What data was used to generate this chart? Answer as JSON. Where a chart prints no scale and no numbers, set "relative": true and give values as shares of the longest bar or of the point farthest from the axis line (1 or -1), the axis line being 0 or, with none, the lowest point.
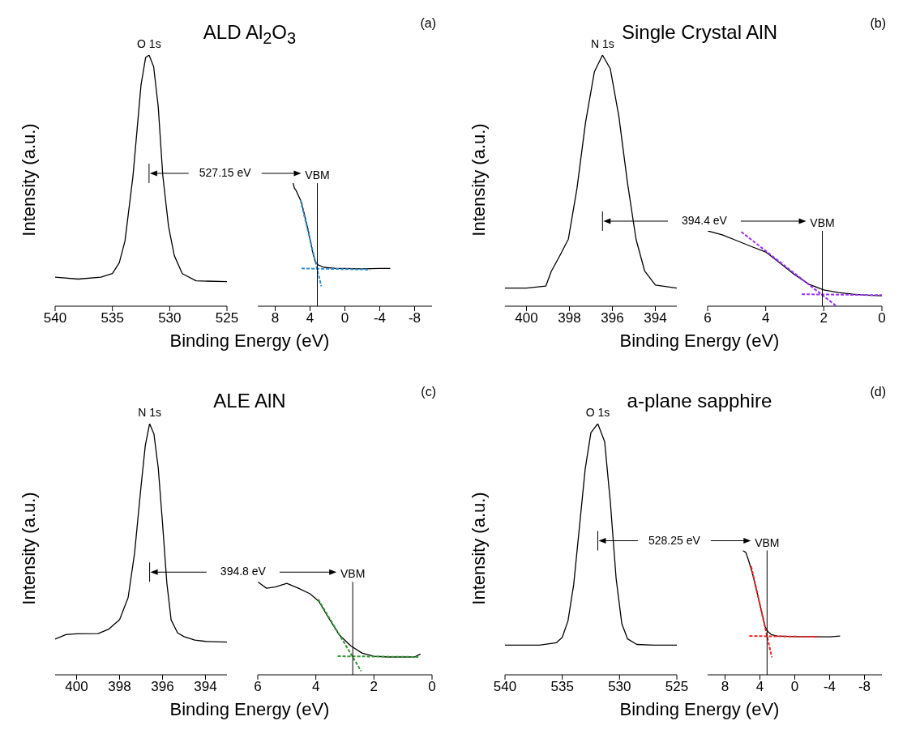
{
  "chart_data": [
    {
      "type": "line",
      "title": "ALD Al$_{2}$O$_{3}$",
      "xlabel": "Binding Energy (eV)",
      "ylabel": "Intensity (a.u.)",
      "relative": true,
      "xlim": [
        540,
        525
      ],
      "xticks": [
        540,
        535,
        530,
        525
      ],
      "annotations": [
        {
          "text": "O 1s",
          "x": 531.8,
          "y": 1
        },
        "527.15 eV"
      ],
      "series": [
        {
          "color": "#000000",
          "x": [
            540,
            538,
            536,
            535,
            534.4,
            533.9,
            533.2,
            532.5,
            532.1,
            531.8,
            531.4,
            531,
            530.6,
            530.1,
            529.6,
            528.9,
            527.7,
            525
          ],
          "values": [
            0.116,
            0.108,
            0.116,
            0.13,
            0.173,
            0.26,
            0.52,
            0.882,
            0.99,
            1,
            0.954,
            0.795,
            0.52,
            0.318,
            0.202,
            0.13,
            0.101,
            0.098
          ]
        }
      ]
    },
    {
      "type": "line",
      "relative": true,
      "xlim": [
        10,
        -10
      ],
      "xticks": [
        8,
        4,
        0,
        -4,
        -8
      ],
      "annotations": [
        "(a)"
      ],
      "ref_lines": [
        {
          "axis": "x",
          "value": 3.16,
          "label": "VBM"
        }
      ],
      "series": [
        {
          "color": "#000000",
          "x": [
            5.94,
            5.8,
            5.6,
            5,
            4.2,
            3.7,
            3.4,
            3.1,
            2.4,
            1,
            0,
            -2,
            -4,
            -5.2
          ],
          "values": [
            1,
            0.96,
            0.94,
            0.848,
            0.614,
            0.439,
            0.363,
            0.336,
            0.316,
            0.307,
            0.307,
            0.304,
            0.307,
            0.307
          ]
        },
        {
          "color": "#2b8fd4",
          "line_style": "dashed",
          "x": [
            5.1,
            2.7
          ],
          "values": [
            0.863,
            0.161
          ]
        },
        {
          "color": "#2b8fd4",
          "line_style": "dashed",
          "x": [
            4.97,
            -2.9
          ],
          "values": [
            0.307,
            0.298
          ]
        }
      ]
    },
    {
      "type": "line",
      "title": "Single Crystal AlN",
      "xlabel": "Binding Energy (eV)",
      "ylabel": "Intensity (a.u.)",
      "relative": true,
      "xlim": [
        401,
        393
      ],
      "xticks": [
        400,
        398,
        396,
        394
      ],
      "annotations": [
        {
          "text": "N 1s",
          "x": 396.46,
          "y": 1
        },
        "394.4 eV"
      ],
      "series": [
        {
          "color": "#000000",
          "x": [
            401,
            400,
            399.1,
            398.85,
            398.45,
            398.05,
            397.65,
            397.25,
            396.84,
            396.46,
            396.1,
            395.7,
            395.3,
            394.9,
            394.5,
            394,
            393
          ],
          "values": [
            0.072,
            0.072,
            0.08,
            0.138,
            0.201,
            0.267,
            0.468,
            0.732,
            0.933,
            1,
            0.946,
            0.757,
            0.493,
            0.267,
            0.141,
            0.084,
            0.072
          ]
        }
      ]
    },
    {
      "type": "line",
      "relative": true,
      "xlim": [
        6,
        0
      ],
      "xticks": [
        6,
        4,
        2,
        0
      ],
      "annotations": [
        "(b)"
      ],
      "ref_lines": [
        {
          "axis": "x",
          "value": 2.05,
          "label": "VBM"
        }
      ],
      "series": [
        {
          "color": "#000000",
          "x": [
            6,
            5.5,
            5,
            4.5,
            4,
            3.5,
            3,
            2.5,
            2,
            1.5,
            1,
            0.5,
            0
          ],
          "values": [
            1,
            0.948,
            0.871,
            0.793,
            0.72,
            0.569,
            0.418,
            0.289,
            0.216,
            0.181,
            0.159,
            0.147,
            0.138
          ]
        },
        {
          "color": "#9b30ff",
          "line_style": "dashed",
          "x": [
            4.84,
            1.59
          ],
          "values": [
            0.987,
            0.009
          ]
        },
        {
          "color": "#9b30ff",
          "line_style": "dashed",
          "x": [
            2.76,
            0
          ],
          "values": [
            0.159,
            0.147
          ]
        }
      ]
    },
    {
      "type": "line",
      "title": "ALE AlN",
      "xlabel": "Binding Energy (eV)",
      "ylabel": "Intensity (a.u.)",
      "relative": true,
      "xlim": [
        401,
        393
      ],
      "xticks": [
        400,
        398,
        396,
        394
      ],
      "annotations": [
        {
          "text": "N 1s",
          "x": 396.6,
          "y": 1
        },
        "394.8 eV"
      ],
      "series": [
        {
          "color": "#000000",
          "x": [
            401,
            400.5,
            400,
            399,
            398.5,
            398,
            397.6,
            397.3,
            397,
            396.8,
            396.6,
            396.4,
            396.2,
            396,
            395.8,
            395.6,
            395.3,
            395,
            394.5,
            394,
            393
          ],
          "values": [
            0.142,
            0.16,
            0.163,
            0.164,
            0.182,
            0.219,
            0.308,
            0.485,
            0.751,
            0.914,
            1,
            0.959,
            0.825,
            0.604,
            0.367,
            0.219,
            0.167,
            0.152,
            0.138,
            0.133,
            0.13
          ]
        }
      ]
    },
    {
      "type": "line",
      "relative": true,
      "xlim": [
        6,
        0
      ],
      "xticks": [
        6,
        4,
        2,
        0
      ],
      "annotations": [
        "(c)"
      ],
      "ref_lines": [
        {
          "axis": "x",
          "value": 2.73,
          "label": "VBM"
        }
      ],
      "series": [
        {
          "color": "#000000",
          "x": [
            6,
            5.7,
            5.4,
            5,
            4.6,
            4.2,
            3.9,
            3.6,
            3.2,
            2.8,
            2.4,
            2,
            1.5,
            1,
            0.6,
            0.4
          ],
          "values": [
            1,
            0.932,
            0.944,
            0.984,
            0.932,
            0.872,
            0.792,
            0.632,
            0.432,
            0.312,
            0.232,
            0.2,
            0.192,
            0.192,
            0.192,
            0.224
          ]
        },
        {
          "color": "#339933",
          "line_style": "dashed",
          "x": [
            3.92,
            2.44
          ],
          "values": [
            0.812,
            0.04
          ]
        },
        {
          "color": "#339933",
          "line_style": "dashed",
          "x": [
            3.25,
            0.47
          ],
          "values": [
            0.2,
            0.192
          ]
        }
      ]
    },
    {
      "type": "line",
      "title": "a-plane sapphire",
      "xlabel": "Binding Energy (eV)",
      "ylabel": "Intensity (a.u.)",
      "relative": true,
      "xlim": [
        540,
        525
      ],
      "xticks": [
        540,
        535,
        530,
        525
      ],
      "annotations": [
        {
          "text": "O 1s",
          "x": 531.9,
          "y": 1
        },
        "528.25 eV"
      ],
      "series": [
        {
          "color": "#000000",
          "x": [
            540,
            537,
            535.5,
            535,
            534.5,
            534,
            533.5,
            533,
            532.5,
            531.9,
            531.3,
            530.8,
            530.3,
            529.8,
            529.3,
            528.5,
            527,
            525
          ],
          "values": [
            0.118,
            0.118,
            0.128,
            0.149,
            0.215,
            0.36,
            0.589,
            0.819,
            0.964,
            1,
            0.928,
            0.686,
            0.384,
            0.203,
            0.143,
            0.121,
            0.118,
            0.118
          ]
        }
      ]
    },
    {
      "type": "line",
      "relative": true,
      "xlim": [
        10,
        -10
      ],
      "xticks": [
        8,
        4,
        0,
        -4,
        -8
      ],
      "annotations": [
        "(d)"
      ],
      "ref_lines": [
        {
          "axis": "x",
          "value": 3.18,
          "label": "VBM"
        }
      ],
      "series": [
        {
          "color": "#000000",
          "x": [
            5.97,
            5.6,
            5.2,
            4.8,
            4.3,
            3.8,
            3.4,
            3.1,
            2.7,
            2,
            0,
            -2,
            -4,
            -5.2
          ],
          "values": [
            1,
            0.983,
            0.898,
            0.8,
            0.654,
            0.507,
            0.385,
            0.349,
            0.324,
            0.312,
            0.307,
            0.307,
            0.305,
            0.312
          ]
        },
        {
          "color": "#ff2020",
          "line_style": "dashed",
          "x": [
            5,
            2.63
          ],
          "values": [
            0.873,
            0.141
          ]
        },
        {
          "color": "#ff2020",
          "line_style": "dashed",
          "x": [
            5.21,
            -2.77
          ],
          "values": [
            0.312,
            0.305
          ]
        }
      ]
    }
  ]
}
